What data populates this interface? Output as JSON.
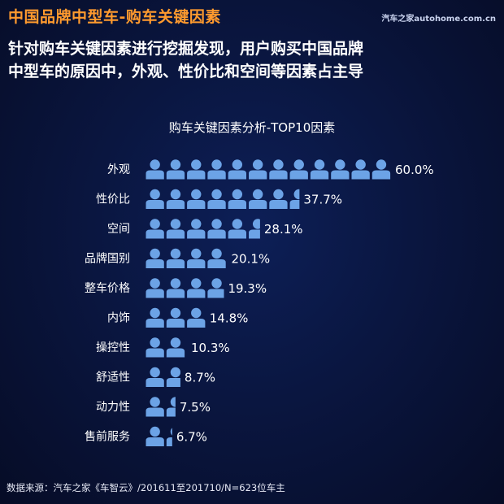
{
  "header": {
    "title": "中国品牌中型车-购车关键因素",
    "watermark": "汽车之家autohome.com.cn"
  },
  "subtitle_lines": [
    "针对购车关键因素进行挖掘发现，用户购买中国品牌",
    "中型车的原因中，外观、性价比和空间等因素占主导"
  ],
  "chart_data": {
    "type": "bar",
    "orientation": "horizontal",
    "title": "购车关键因素分析-TOP10因素",
    "categories": [
      "外观",
      "性价比",
      "空间",
      "品牌国别",
      "整车价格",
      "内饰",
      "操控性",
      "舒适性",
      "动力性",
      "售前服务"
    ],
    "values": [
      60.0,
      37.7,
      28.1,
      20.1,
      19.3,
      14.8,
      10.3,
      8.7,
      7.5,
      6.7
    ],
    "value_labels": [
      "60.0%",
      "37.7%",
      "28.1%",
      "20.1%",
      "19.3%",
      "14.8%",
      "10.3%",
      "8.7%",
      "7.5%",
      "6.7%"
    ],
    "unit": "%",
    "xlim": [
      0,
      60
    ],
    "grid": false,
    "legend": "none",
    "mark": "person-icons",
    "colors": {
      "bar": "#6ca3e6",
      "label": "#ffffff",
      "title": "#ffffff"
    }
  },
  "footer": {
    "source": "数据来源：汽车之家《车智云》/201611至201710/N=623位车主"
  }
}
